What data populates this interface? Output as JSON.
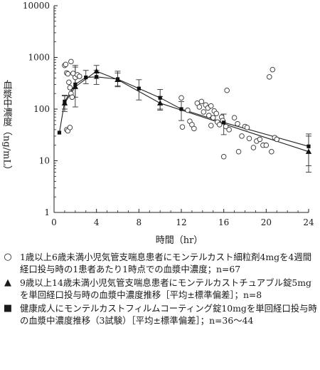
{
  "chart_data": {
    "type": "scatter",
    "title": "",
    "xlabel": "時間（hr）",
    "ylabel": "血漿中濃度（ng/mL）",
    "xlim": [
      0,
      24
    ],
    "ylim": [
      1,
      10000
    ],
    "yscale": "log",
    "x_ticks": [
      "0",
      "4",
      "8",
      "12",
      "16",
      "20",
      "24"
    ],
    "y_ticks": [
      "1",
      "10",
      "100",
      "1000",
      "10000"
    ],
    "grid": false,
    "series": [
      {
        "marker": "circle-open",
        "points": [
          [
            1.0,
            700
          ],
          [
            1.1,
            730
          ],
          [
            1.2,
            500
          ],
          [
            1.3,
            480
          ],
          [
            1.4,
            330
          ],
          [
            1.5,
            260
          ],
          [
            1.2,
            40
          ],
          [
            1.3,
            38
          ],
          [
            1.5,
            44
          ],
          [
            1.6,
            200
          ],
          [
            1.7,
            170
          ],
          [
            1.8,
            490
          ],
          [
            1.6,
            830
          ],
          [
            2.0,
            410
          ],
          [
            2.2,
            460
          ],
          [
            2.4,
            430
          ],
          [
            12.0,
            165
          ],
          [
            12.1,
            45
          ],
          [
            12.6,
            95
          ],
          [
            12.8,
            58
          ],
          [
            13.0,
            50
          ],
          [
            13.2,
            42
          ],
          [
            13.5,
            130
          ],
          [
            13.7,
            110
          ],
          [
            13.9,
            140
          ],
          [
            14.1,
            88
          ],
          [
            14.3,
            120
          ],
          [
            14.5,
            105
          ],
          [
            14.6,
            75
          ],
          [
            14.8,
            115
          ],
          [
            14.8,
            48
          ],
          [
            15.0,
            68
          ],
          [
            15.1,
            92
          ],
          [
            15.3,
            82
          ],
          [
            15.4,
            56
          ],
          [
            15.6,
            50
          ],
          [
            15.8,
            70
          ],
          [
            15.9,
            60
          ],
          [
            16.0,
            12
          ],
          [
            16.2,
            46
          ],
          [
            16.3,
            230
          ],
          [
            16.5,
            40
          ],
          [
            17.0,
            68
          ],
          [
            17.3,
            52
          ],
          [
            17.4,
            15
          ],
          [
            17.7,
            30
          ],
          [
            18.0,
            46
          ],
          [
            18.2,
            44
          ],
          [
            18.4,
            27
          ],
          [
            18.8,
            18
          ],
          [
            19.1,
            24
          ],
          [
            19.4,
            26
          ],
          [
            19.7,
            20
          ],
          [
            20.0,
            20
          ],
          [
            20.3,
            420
          ],
          [
            20.6,
            580
          ],
          [
            20.5,
            15
          ],
          [
            20.8,
            28
          ],
          [
            21.0,
            26
          ]
        ]
      },
      {
        "marker": "triangle",
        "points": [
          [
            1.0,
            130
          ],
          [
            2.0,
            270
          ],
          [
            4.0,
            540
          ],
          [
            6.0,
            370
          ],
          [
            10.0,
            130
          ],
          [
            24.0,
            15
          ]
        ],
        "err": [
          [
            1.0,
            90,
            185
          ],
          [
            2.0,
            110,
            650
          ],
          [
            4.0,
            390,
            700
          ],
          [
            6.0,
            270,
            500
          ],
          [
            10.0,
            95,
            175
          ],
          [
            24.0,
            6,
            33
          ]
        ]
      },
      {
        "marker": "square",
        "points": [
          [
            0.5,
            35
          ],
          [
            1.0,
            140
          ],
          [
            2.0,
            300
          ],
          [
            3.0,
            410
          ],
          [
            4.0,
            420
          ],
          [
            6.0,
            380
          ],
          [
            8.0,
            250
          ],
          [
            10.0,
            165
          ],
          [
            12.0,
            100
          ],
          [
            16.0,
            55
          ],
          [
            24.0,
            19
          ]
        ],
        "err": [
          [
            1.0,
            100,
            180
          ],
          [
            2.0,
            170,
            700
          ],
          [
            3.0,
            310,
            560
          ],
          [
            4.0,
            300,
            560
          ],
          [
            6.0,
            280,
            540
          ],
          [
            8.0,
            150,
            370
          ],
          [
            10.0,
            100,
            240
          ],
          [
            12.0,
            60,
            140
          ],
          [
            16.0,
            32,
            80
          ],
          [
            24.0,
            8,
            30
          ]
        ]
      }
    ]
  },
  "legend": [
    {
      "icon": "open-circle-icon",
      "symbol": "○",
      "text": "1歳以上6歳未満小児気管支喘息患者にモンテルカスト細粒剤4mgを4週間経口投与時の1患者あたり1時点での血漿中濃度；n=67"
    },
    {
      "icon": "filled-triangle-icon",
      "symbol": "▲",
      "text": "9歳以上14歳未満小児気管支喘息患者にモンテルカストチュアブル錠5mgを単回経口投与時の血漿中濃度推移［平均±標準偏差］；n=8"
    },
    {
      "icon": "filled-square-icon",
      "symbol": "■",
      "text": "健康成人にモンテルカストフィルムコーティング錠10mgを単回経口投与時の血漿中濃度推移（3試験）［平均±標準偏差］；n=36～44"
    }
  ]
}
